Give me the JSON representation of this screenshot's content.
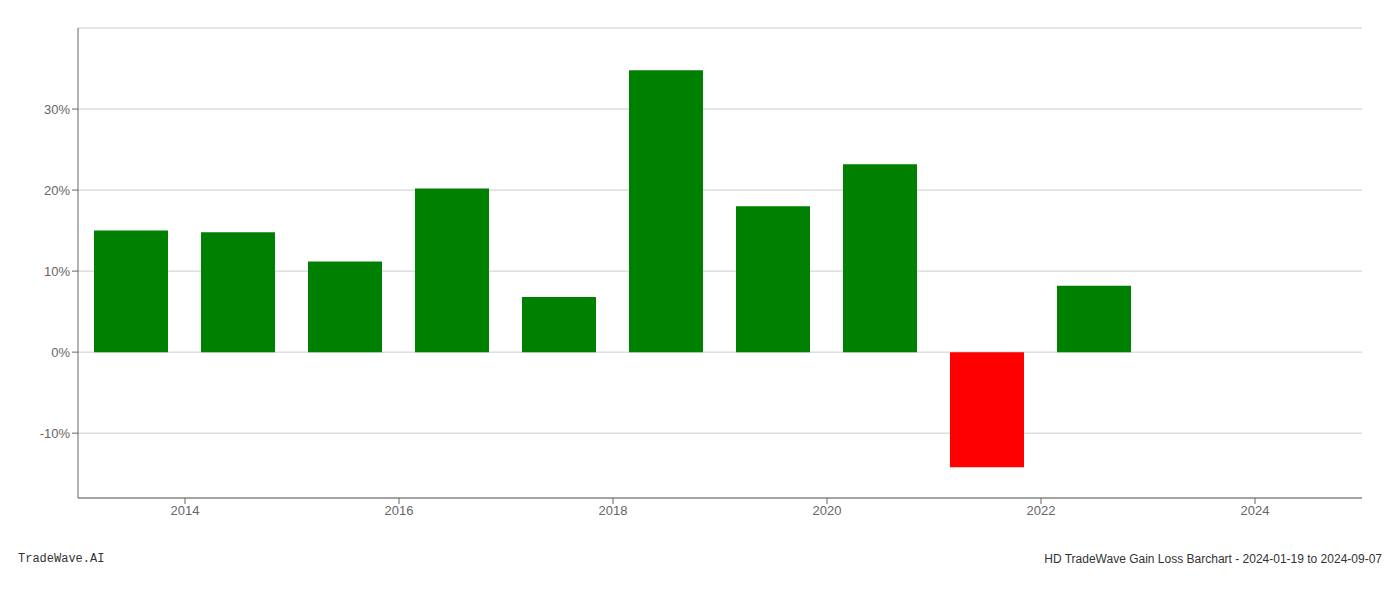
{
  "chart_data": {
    "type": "bar",
    "x": [
      2013.5,
      2014.5,
      2015.5,
      2016.5,
      2017.5,
      2018.5,
      2019.5,
      2020.5,
      2021.5,
      2022.5
    ],
    "values": [
      15.0,
      14.8,
      11.2,
      20.2,
      6.8,
      34.8,
      18.0,
      23.2,
      -14.2,
      8.2
    ],
    "colors": [
      "#008000",
      "#008000",
      "#008000",
      "#008000",
      "#008000",
      "#008000",
      "#008000",
      "#008000",
      "#ff0000",
      "#008000"
    ],
    "xlim": [
      2013.0,
      2025.0
    ],
    "ylim": [
      -18,
      40
    ],
    "xticks": [
      2014,
      2016,
      2018,
      2020,
      2022,
      2024
    ],
    "yticks": [
      {
        "value": -10,
        "label": "-10%"
      },
      {
        "value": 0,
        "label": "0%"
      },
      {
        "value": 10,
        "label": "10%"
      },
      {
        "value": 20,
        "label": "20%"
      },
      {
        "value": 30,
        "label": "30%"
      }
    ],
    "grid": true,
    "annotations": [
      "TradeWave.AI",
      "HD TradeWave Gain Loss Barchart - 2024-01-19 to 2024-09-07"
    ]
  }
}
